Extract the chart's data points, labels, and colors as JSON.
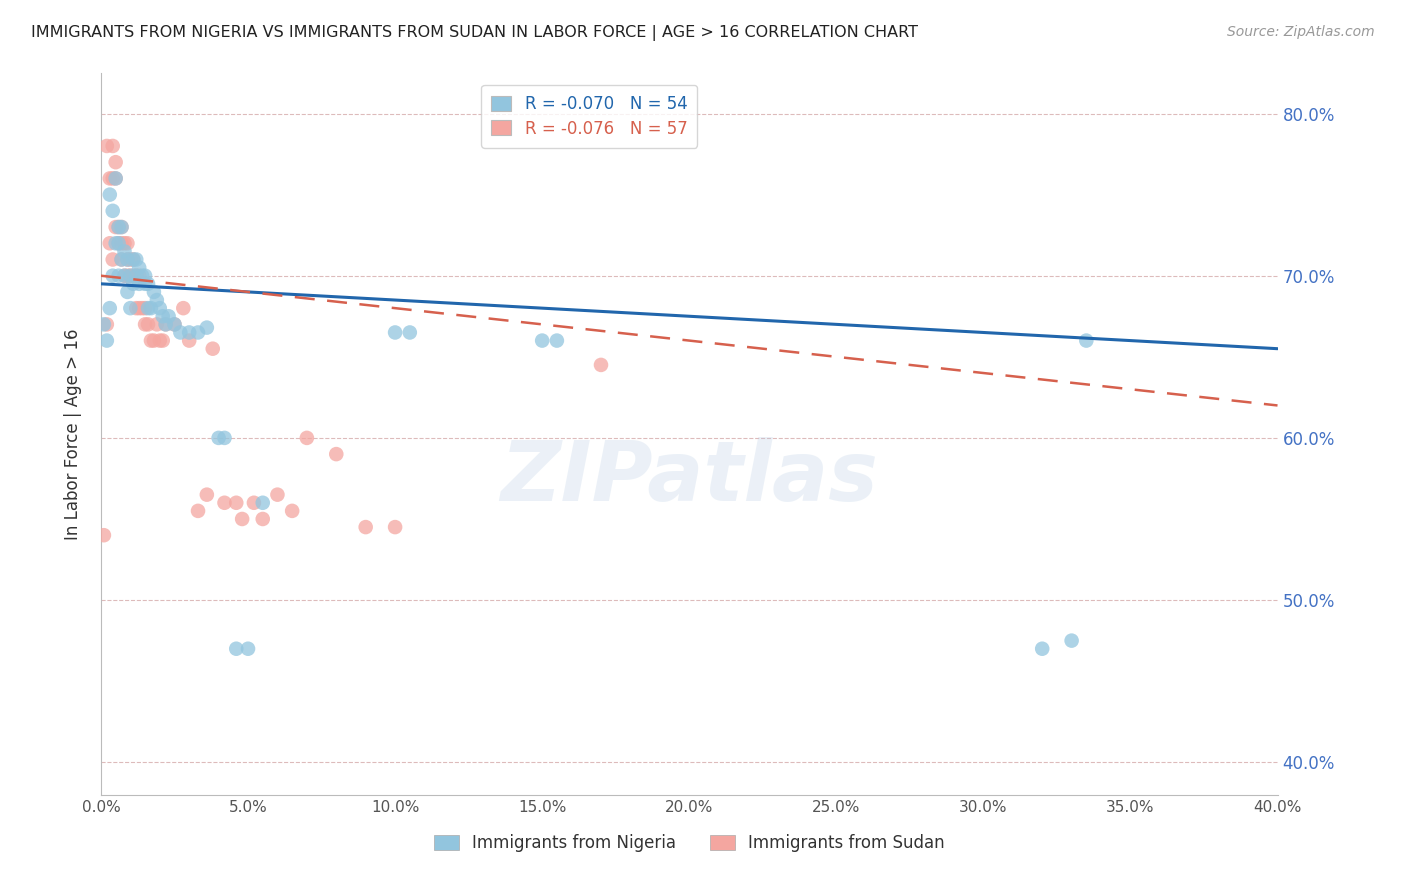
{
  "title": "IMMIGRANTS FROM NIGERIA VS IMMIGRANTS FROM SUDAN IN LABOR FORCE | AGE > 16 CORRELATION CHART",
  "source": "Source: ZipAtlas.com",
  "ylabel": "In Labor Force | Age > 16",
  "xlim": [
    0.0,
    0.4
  ],
  "ylim": [
    0.38,
    0.825
  ],
  "xticks": [
    0.0,
    0.05,
    0.1,
    0.15,
    0.2,
    0.25,
    0.3,
    0.35,
    0.4
  ],
  "yticks": [
    0.4,
    0.5,
    0.6,
    0.7,
    0.8
  ],
  "ytick_labels": [
    "40.0%",
    "50.0%",
    "60.0%",
    "70.0%",
    "80.0%"
  ],
  "xtick_labels": [
    "0.0%",
    "5.0%",
    "10.0%",
    "15.0%",
    "20.0%",
    "25.0%",
    "30.0%",
    "35.0%",
    "40.0%"
  ],
  "nigeria_R": -0.07,
  "nigeria_N": 54,
  "sudan_R": -0.076,
  "sudan_N": 57,
  "nigeria_color": "#92c5de",
  "sudan_color": "#f4a6a0",
  "nigeria_line_color": "#2166ac",
  "sudan_line_color": "#d6604d",
  "watermark": "ZIPatlas",
  "nigeria_x": [
    0.001,
    0.002,
    0.003,
    0.003,
    0.004,
    0.004,
    0.005,
    0.005,
    0.006,
    0.006,
    0.006,
    0.007,
    0.007,
    0.008,
    0.008,
    0.009,
    0.009,
    0.01,
    0.01,
    0.011,
    0.011,
    0.012,
    0.012,
    0.013,
    0.013,
    0.014,
    0.015,
    0.015,
    0.016,
    0.016,
    0.017,
    0.018,
    0.019,
    0.02,
    0.021,
    0.022,
    0.023,
    0.025,
    0.027,
    0.03,
    0.033,
    0.036,
    0.04,
    0.042,
    0.046,
    0.05,
    0.055,
    0.1,
    0.105,
    0.15,
    0.155,
    0.32,
    0.33,
    0.335
  ],
  "nigeria_y": [
    0.67,
    0.66,
    0.68,
    0.75,
    0.74,
    0.7,
    0.72,
    0.76,
    0.7,
    0.72,
    0.73,
    0.71,
    0.73,
    0.7,
    0.715,
    0.69,
    0.71,
    0.68,
    0.7,
    0.695,
    0.71,
    0.7,
    0.71,
    0.695,
    0.705,
    0.7,
    0.695,
    0.7,
    0.68,
    0.695,
    0.68,
    0.69,
    0.685,
    0.68,
    0.675,
    0.67,
    0.675,
    0.67,
    0.665,
    0.665,
    0.665,
    0.668,
    0.6,
    0.6,
    0.47,
    0.47,
    0.56,
    0.665,
    0.665,
    0.66,
    0.66,
    0.47,
    0.475,
    0.66
  ],
  "sudan_x": [
    0.001,
    0.002,
    0.002,
    0.003,
    0.003,
    0.004,
    0.004,
    0.004,
    0.005,
    0.005,
    0.005,
    0.006,
    0.006,
    0.007,
    0.007,
    0.007,
    0.008,
    0.008,
    0.009,
    0.009,
    0.009,
    0.01,
    0.01,
    0.011,
    0.011,
    0.012,
    0.012,
    0.013,
    0.013,
    0.014,
    0.015,
    0.015,
    0.016,
    0.017,
    0.018,
    0.019,
    0.02,
    0.021,
    0.022,
    0.025,
    0.028,
    0.03,
    0.033,
    0.036,
    0.038,
    0.042,
    0.046,
    0.048,
    0.052,
    0.055,
    0.06,
    0.065,
    0.07,
    0.08,
    0.09,
    0.1,
    0.17
  ],
  "sudan_y": [
    0.54,
    0.67,
    0.78,
    0.72,
    0.76,
    0.78,
    0.71,
    0.76,
    0.73,
    0.76,
    0.77,
    0.73,
    0.72,
    0.73,
    0.72,
    0.71,
    0.72,
    0.7,
    0.72,
    0.7,
    0.71,
    0.7,
    0.71,
    0.7,
    0.71,
    0.7,
    0.68,
    0.7,
    0.68,
    0.68,
    0.68,
    0.67,
    0.67,
    0.66,
    0.66,
    0.67,
    0.66,
    0.66,
    0.67,
    0.67,
    0.68,
    0.66,
    0.555,
    0.565,
    0.655,
    0.56,
    0.56,
    0.55,
    0.56,
    0.55,
    0.565,
    0.555,
    0.6,
    0.59,
    0.545,
    0.545,
    0.645
  ],
  "nigeria_trend_x": [
    0.0,
    0.4
  ],
  "nigeria_trend_y": [
    0.695,
    0.655
  ],
  "sudan_trend_x": [
    0.0,
    0.4
  ],
  "sudan_trend_y": [
    0.7,
    0.62
  ]
}
